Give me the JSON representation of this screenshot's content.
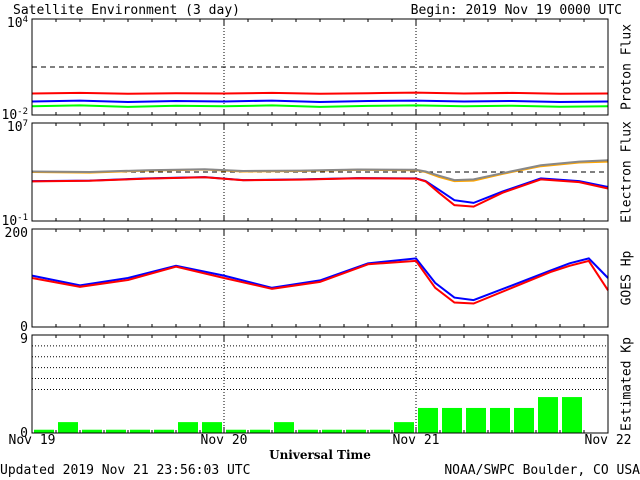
{
  "header": {
    "title": "Satellite Environment (3 day)",
    "begin": "Begin:  2019 Nov 19 0000 UTC"
  },
  "footer": {
    "updated": "Updated 2019 Nov 21 23:56:03 UTC",
    "source": "NOAA/SWPC Boulder, CO USA"
  },
  "x_axis": {
    "title": "Universal Time",
    "ticks": [
      "Nov 19",
      "Nov 20",
      "Nov 21",
      "Nov 22"
    ]
  },
  "colors": {
    "red": "#ff0000",
    "blue": "#0000ff",
    "green": "#00ff00",
    "orange": "#ffa500",
    "grid": "#000000"
  },
  "chart_data": [
    {
      "type": "line",
      "ylabel": "Proton Flux",
      "y_scale": "log",
      "ylim": [
        0.01,
        10000
      ],
      "y_ticks": [
        {
          "base": "10",
          "exp": "4"
        },
        {
          "base": "10",
          "exp": "-2"
        }
      ],
      "threshold": 10,
      "x_unit": "days since Nov 19 00:00 UTC",
      "series": [
        {
          "color": "red",
          "x": [
            0,
            0.25,
            0.5,
            0.75,
            1,
            1.25,
            1.5,
            1.75,
            2,
            2.25,
            2.5,
            2.75,
            3
          ],
          "values": [
            0.22,
            0.24,
            0.21,
            0.23,
            0.22,
            0.24,
            0.21,
            0.23,
            0.25,
            0.22,
            0.24,
            0.21,
            0.22
          ]
        },
        {
          "color": "blue",
          "x": [
            0,
            0.25,
            0.5,
            0.75,
            1,
            1.25,
            1.5,
            1.75,
            2,
            2.25,
            2.5,
            2.75,
            3
          ],
          "values": [
            0.07,
            0.08,
            0.065,
            0.075,
            0.07,
            0.08,
            0.065,
            0.075,
            0.08,
            0.07,
            0.075,
            0.065,
            0.07
          ]
        },
        {
          "color": "green",
          "x": [
            0,
            0.25,
            0.5,
            0.75,
            1,
            1.25,
            1.5,
            1.75,
            2,
            2.25,
            2.5,
            2.75,
            3
          ],
          "values": [
            0.035,
            0.04,
            0.032,
            0.038,
            0.035,
            0.04,
            0.032,
            0.037,
            0.04,
            0.035,
            0.038,
            0.033,
            0.035
          ]
        }
      ]
    },
    {
      "type": "line",
      "ylabel": "Electron Flux",
      "y_scale": "log",
      "ylim": [
        0.1,
        10000000
      ],
      "y_ticks": [
        {
          "base": "10",
          "exp": "7"
        },
        {
          "base": "10",
          "exp": "-1"
        }
      ],
      "threshold": 1000,
      "x_unit": "days since Nov 19 00:00 UTC",
      "series": [
        {
          "color": "orange",
          "x": [
            0,
            0.3,
            0.6,
            0.9,
            1.1,
            1.4,
            1.7,
            2.0,
            2.05,
            2.12,
            2.2,
            2.3,
            2.45,
            2.65,
            2.85,
            3
          ],
          "values": [
            1000,
            900,
            1300,
            1600,
            1100,
            1200,
            1500,
            1400,
            1000,
            400,
            180,
            200,
            700,
            3000,
            6000,
            7000
          ]
        },
        {
          "color": "grey",
          "x": [
            0,
            0.3,
            0.6,
            0.9,
            1.1,
            1.4,
            1.7,
            2.0,
            2.05,
            2.12,
            2.2,
            2.3,
            2.45,
            2.65,
            2.85,
            3
          ],
          "values": [
            1100,
            1000,
            1400,
            1700,
            1200,
            1300,
            1600,
            1500,
            1100,
            500,
            220,
            250,
            800,
            3500,
            7000,
            9000
          ]
        },
        {
          "color": "blue",
          "x": [
            0,
            0.3,
            0.6,
            0.9,
            1.1,
            1.4,
            1.7,
            2.0,
            2.05,
            2.12,
            2.2,
            2.3,
            2.45,
            2.65,
            2.85,
            3
          ],
          "values": [
            180,
            200,
            300,
            380,
            220,
            250,
            320,
            300,
            180,
            35,
            5,
            3,
            25,
            300,
            180,
            60
          ]
        },
        {
          "color": "red",
          "x": [
            0,
            0.3,
            0.6,
            0.9,
            1.1,
            1.4,
            1.7,
            2.0,
            2.05,
            2.12,
            2.2,
            2.3,
            2.45,
            2.65,
            2.85,
            3
          ],
          "values": [
            170,
            190,
            290,
            370,
            210,
            240,
            310,
            290,
            170,
            20,
            2,
            1.5,
            20,
            250,
            150,
            45
          ]
        }
      ]
    },
    {
      "type": "line",
      "ylabel": "GOES Hp",
      "ylim": [
        0,
        200
      ],
      "y_ticks": [
        "200",
        "0"
      ],
      "x_unit": "days since Nov 19 00:00 UTC",
      "series": [
        {
          "color": "blue",
          "x": [
            0,
            0.25,
            0.5,
            0.75,
            1.0,
            1.25,
            1.5,
            1.75,
            2.0,
            2.1,
            2.2,
            2.3,
            2.5,
            2.7,
            2.8,
            2.9,
            3.0
          ],
          "values": [
            105,
            85,
            100,
            125,
            105,
            80,
            95,
            130,
            140,
            90,
            60,
            55,
            85,
            115,
            130,
            140,
            100
          ]
        },
        {
          "color": "red",
          "x": [
            0,
            0.25,
            0.5,
            0.75,
            1.0,
            1.25,
            1.5,
            1.75,
            2.0,
            2.1,
            2.2,
            2.3,
            2.5,
            2.7,
            2.8,
            2.9,
            3.0
          ],
          "values": [
            100,
            82,
            96,
            123,
            100,
            78,
            92,
            128,
            135,
            80,
            50,
            48,
            80,
            112,
            125,
            135,
            75
          ]
        }
      ]
    },
    {
      "type": "bar",
      "ylabel": "Estimated Kp",
      "ylim": [
        0,
        9
      ],
      "y_ticks": [
        "9",
        "0"
      ],
      "x_unit": "3-hour intervals from Nov 19 00 UTC",
      "color": "green",
      "values": [
        0.3,
        1.0,
        0.3,
        0.3,
        0.3,
        0.3,
        1.0,
        1.0,
        0.3,
        0.3,
        1.0,
        0.3,
        0.3,
        0.3,
        0.3,
        1.0,
        2.3,
        2.3,
        2.3,
        2.3,
        2.3,
        3.3,
        3.3
      ]
    }
  ]
}
